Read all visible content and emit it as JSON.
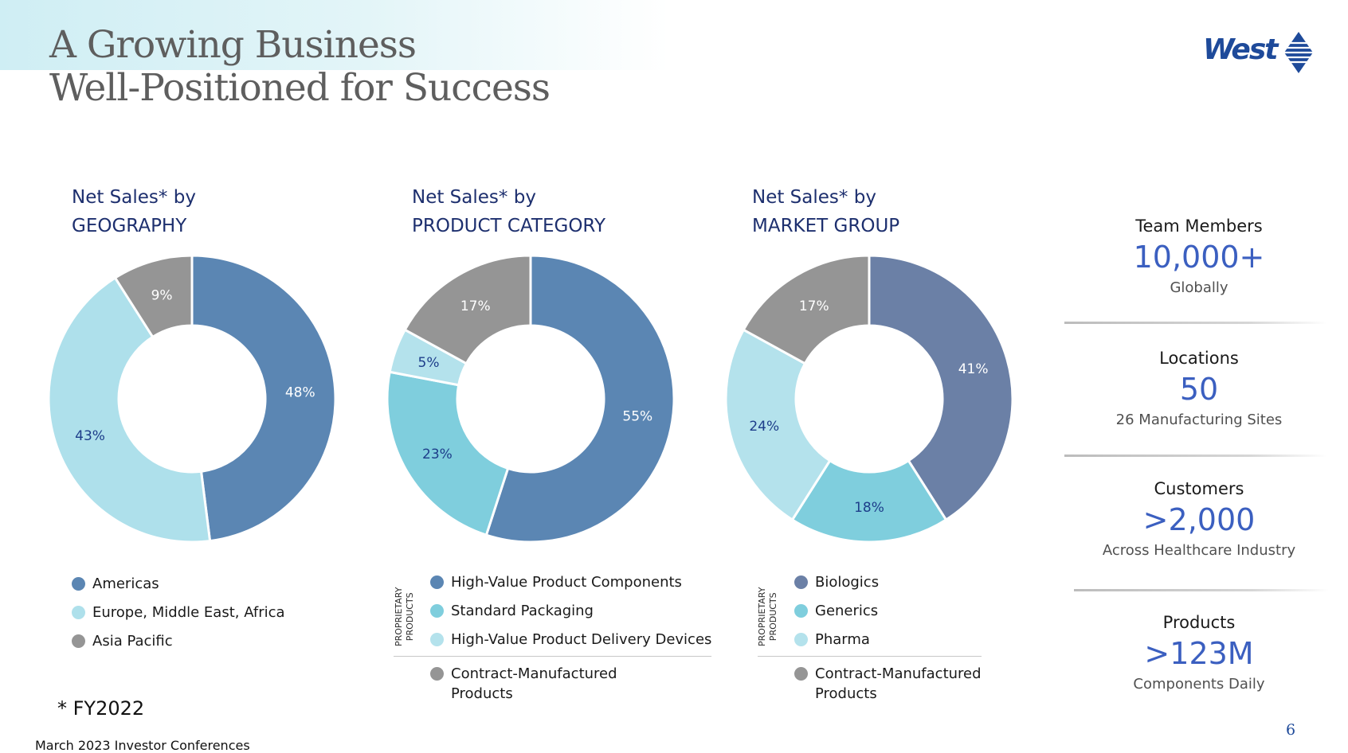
{
  "header": {
    "title_line1": "A Growing Business",
    "title_line2": "Well-Positioned for Success",
    "logo_text": "West"
  },
  "chart_data": [
    {
      "type": "pie",
      "title_line1": "Net Sales* by",
      "title_line2": "GEOGRAPHY",
      "series": [
        {
          "name": "Americas",
          "value": 48,
          "label": "48%",
          "color": "#5b86b3",
          "label_color": "#ffffff"
        },
        {
          "name": "Europe, Middle East, Africa",
          "value": 43,
          "label": "43%",
          "color": "#aee0eb",
          "label_color": "#1d3d8a"
        },
        {
          "name": "Asia Pacific",
          "value": 9,
          "label": "9%",
          "color": "#959595",
          "label_color": "#ffffff"
        }
      ]
    },
    {
      "type": "pie",
      "title_line1": "Net Sales* by",
      "title_line2": "PRODUCT CATEGORY",
      "series": [
        {
          "name": "High-Value Product Components",
          "value": 55,
          "label": "55%",
          "color": "#5b86b3",
          "label_color": "#ffffff"
        },
        {
          "name": "Standard Packaging",
          "value": 23,
          "label": "23%",
          "color": "#7fcedd",
          "label_color": "#1d3d8a"
        },
        {
          "name": "High-Value Product Delivery Devices",
          "value": 5,
          "label": "5%",
          "color": "#b4e2ec",
          "label_color": "#1d3d8a"
        },
        {
          "name": "Contract-Manufactured Products",
          "value": 17,
          "label": "17%",
          "color": "#959595",
          "label_color": "#ffffff"
        }
      ],
      "group_label_line1": "PROPRIETARY",
      "group_label_line2": "PRODUCTS"
    },
    {
      "type": "pie",
      "title_line1": "Net Sales* by",
      "title_line2": "MARKET GROUP",
      "series": [
        {
          "name": "Biologics",
          "value": 41,
          "label": "41%",
          "color": "#6b80a6",
          "label_color": "#ffffff"
        },
        {
          "name": "Generics",
          "value": 18,
          "label": "18%",
          "color": "#7fcedd",
          "label_color": "#1d3d8a"
        },
        {
          "name": "Pharma",
          "value": 24,
          "label": "24%",
          "color": "#b4e2ec",
          "label_color": "#1d3d8a"
        },
        {
          "name": "Contract-Manufactured Products",
          "value": 17,
          "label": "17%",
          "color": "#959595",
          "label_color": "#ffffff"
        }
      ],
      "group_label_line1": "PROPRIETARY",
      "group_label_line2": "PRODUCTS"
    }
  ],
  "legends": {
    "geo": [
      "Americas",
      "Europe, Middle East, Africa",
      "Asia Pacific"
    ],
    "prod": [
      "High-Value Product Components",
      "Standard Packaging",
      "High-Value Product Delivery Devices"
    ],
    "prod_extra_line1": "Contract-Manufactured",
    "prod_extra_line2": "Products",
    "market": [
      "Biologics",
      "Generics",
      "Pharma"
    ],
    "market_extra_line1": "Contract-Manufactured",
    "market_extra_line2": "Products"
  },
  "stats": [
    {
      "label": "Team Members",
      "value": "10,000+",
      "sub": "Globally"
    },
    {
      "label": "Locations",
      "value": "50",
      "sub": "26 Manufacturing Sites"
    },
    {
      "label": "Customers",
      "value": ">2,000",
      "sub": "Across Healthcare Industry"
    },
    {
      "label": "Products",
      "value": ">123M",
      "sub": "Components Daily"
    }
  ],
  "footnote": "* FY2022",
  "footer": "March 2023 Investor Conferences",
  "page_number": "6"
}
